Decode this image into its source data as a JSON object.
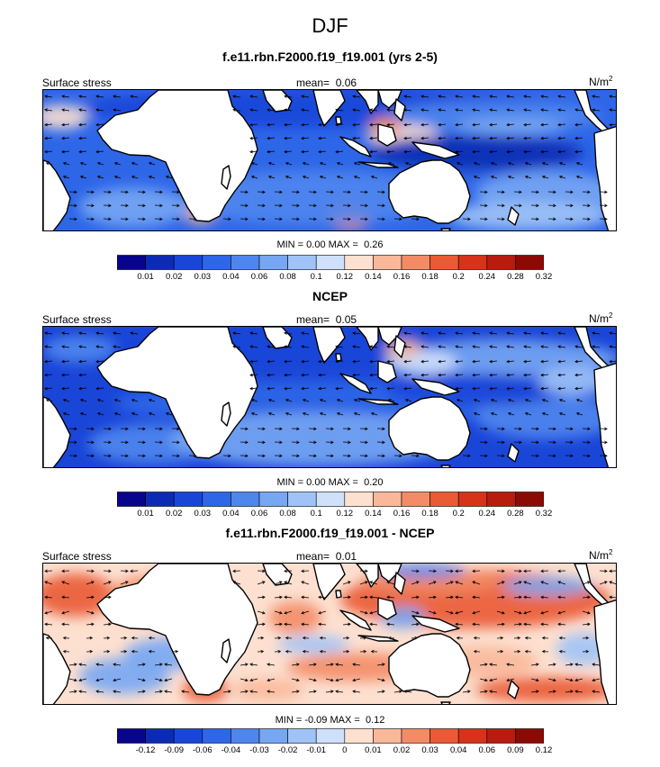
{
  "title": "DJF",
  "panels": [
    {
      "id": "model",
      "title": "f.e11.rbn.F2000.f19_f19.001 (yrs 2-5)",
      "left_label": "Surface stress",
      "mean_label": "mean=",
      "mean_value": "0.06",
      "units_base": "N/m",
      "units_exp": "2",
      "min_label": "MIN =",
      "min_value": "0.00",
      "max_label": "MAX =",
      "max_value": "0.26",
      "colorbar_colors": [
        "#08048c",
        "#0c2bb4",
        "#1a46d8",
        "#2e66e8",
        "#4f86ee",
        "#77a6f3",
        "#a0c3f7",
        "#cfe0fb",
        "#fde0d0",
        "#f9b89a",
        "#f38c66",
        "#ea5a34",
        "#d6331a",
        "#b71c0e",
        "#8c0a04"
      ],
      "colorbar_ticks": [
        "0.01",
        "0.02",
        "0.03",
        "0.04",
        "0.06",
        "0.08",
        "0.1",
        "0.12",
        "0.14",
        "0.16",
        "0.18",
        "0.2",
        "0.24",
        "0.28",
        "0.32"
      ],
      "ocean_base_color": "#2e66e8"
    },
    {
      "id": "ncep",
      "title": "NCEP",
      "left_label": "Surface stress",
      "mean_label": "mean=",
      "mean_value": "0.05",
      "units_base": "N/m",
      "units_exp": "2",
      "min_label": "MIN =",
      "min_value": "0.00",
      "max_label": "MAX =",
      "max_value": "0.20",
      "colorbar_colors": [
        "#08048c",
        "#0c2bb4",
        "#1a46d8",
        "#2e66e8",
        "#4f86ee",
        "#77a6f3",
        "#a0c3f7",
        "#cfe0fb",
        "#fde0d0",
        "#f9b89a",
        "#f38c66",
        "#ea5a34",
        "#d6331a",
        "#b71c0e",
        "#8c0a04"
      ],
      "colorbar_ticks": [
        "0.01",
        "0.02",
        "0.03",
        "0.04",
        "0.06",
        "0.08",
        "0.1",
        "0.12",
        "0.14",
        "0.16",
        "0.18",
        "0.2",
        "0.24",
        "0.28",
        "0.32"
      ],
      "ocean_base_color": "#1a46d8"
    },
    {
      "id": "diff",
      "title": "f.e11.rbn.F2000.f19_f19.001 - NCEP",
      "left_label": "Surface stress",
      "mean_label": "mean=",
      "mean_value": "0.01",
      "units_base": "N/m",
      "units_exp": "2",
      "min_label": "MIN =",
      "min_value": "-0.09",
      "max_label": "MAX =",
      "max_value": "0.12",
      "colorbar_colors": [
        "#08048c",
        "#0c2bb4",
        "#1a46d8",
        "#2e66e8",
        "#4f86ee",
        "#77a6f3",
        "#a0c3f7",
        "#cfe0fb",
        "#fde0d0",
        "#f9b89a",
        "#f38c66",
        "#ea5a34",
        "#d6331a",
        "#b71c0e",
        "#8c0a04"
      ],
      "colorbar_ticks": [
        "-0.12",
        "-0.09",
        "-0.06",
        "-0.04",
        "-0.03",
        "-0.02",
        "-0.01",
        "0",
        "0.01",
        "0.02",
        "0.03",
        "0.04",
        "0.06",
        "0.09",
        "0.12"
      ],
      "ocean_base_color": "#fde0d0"
    }
  ]
}
